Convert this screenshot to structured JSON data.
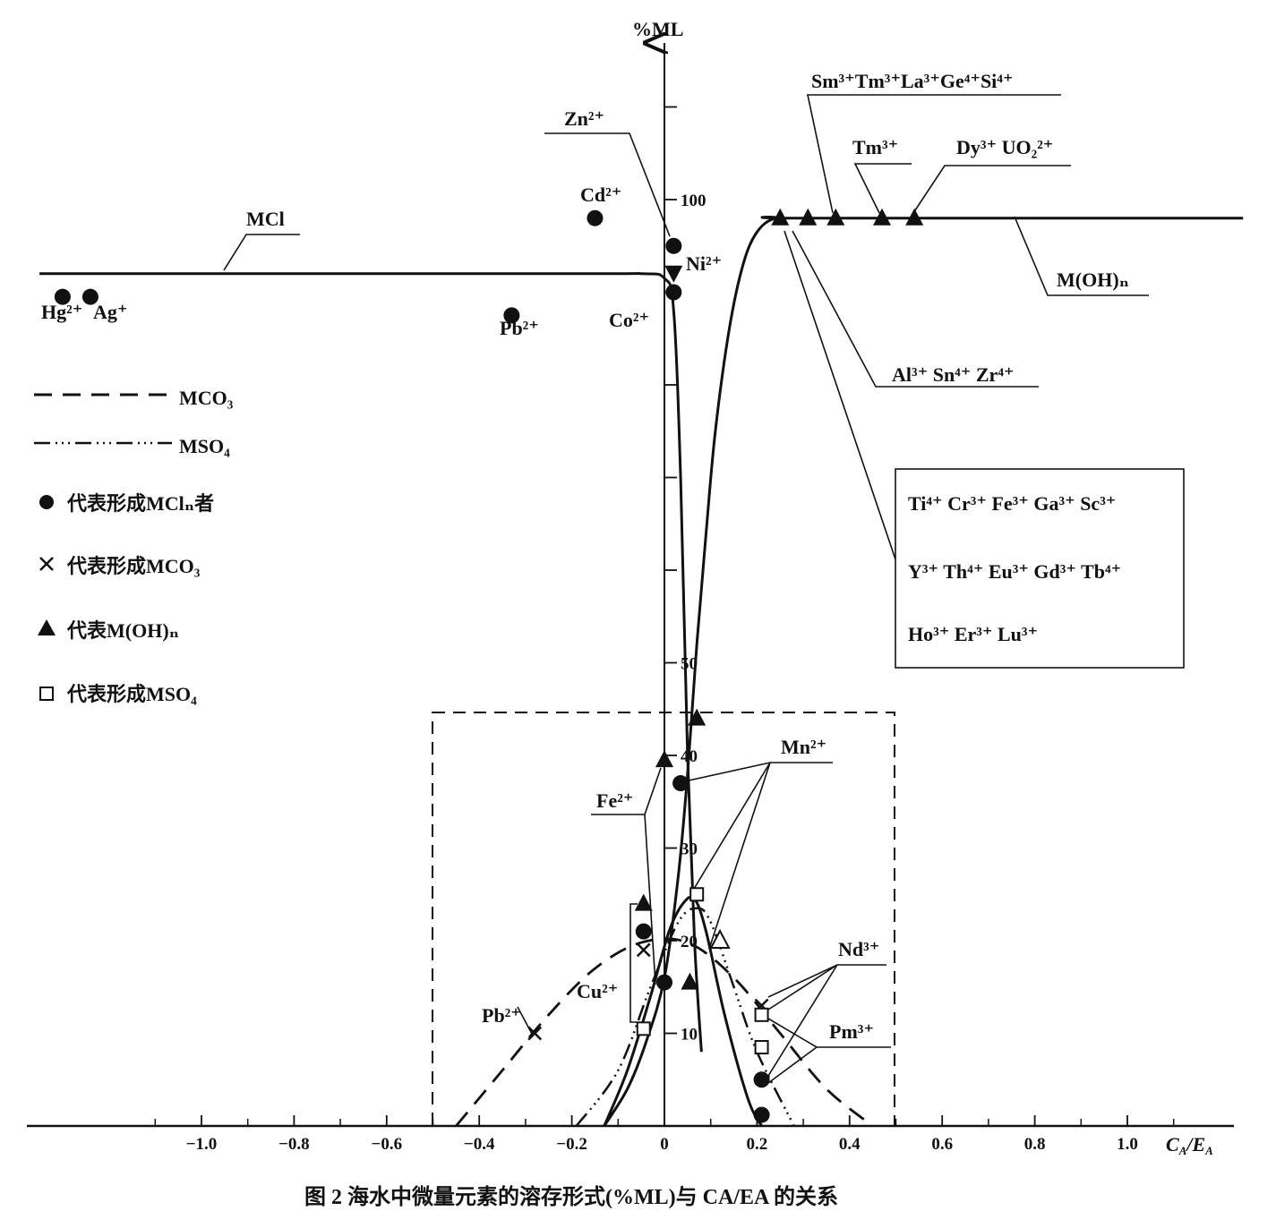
{
  "chart_data": {
    "type": "line",
    "caption": "图 2   海水中微量元素的溶存形式(%ML)与 CA/EA 的关系",
    "ylabel": "%ML",
    "xlabel": "CA/EA",
    "xlim": [
      -1.35,
      1.25
    ],
    "ylim": [
      0,
      115
    ],
    "x_ticks": [
      -1.0,
      -0.8,
      -0.6,
      -0.4,
      -0.2,
      0,
      0.2,
      0.4,
      0.6,
      0.8,
      1.0
    ],
    "x_tick_labels": [
      "−1.0",
      "−0.8",
      "−0.6",
      "−0.4",
      "−0.2",
      "0",
      "0.2",
      "0.4",
      "0.6",
      "0.8",
      "1.0"
    ],
    "y_ticks": [
      10,
      20,
      30,
      40,
      50,
      60,
      70,
      80,
      90,
      100,
      110
    ],
    "y_tick_labels": {
      "10": "10",
      "20": "20",
      "30": "30",
      "40": "40",
      "50": "50",
      "100": "100"
    },
    "series": [
      {
        "name": "MCl",
        "style": "solid",
        "x": [
          -1.35,
          -0.2,
          -0.05,
          0.0,
          0.02,
          0.035,
          0.05,
          0.065,
          0.08
        ],
        "y": [
          92,
          92,
          92,
          91.5,
          88,
          70,
          40,
          20,
          8
        ]
      },
      {
        "name": "M(OH)n",
        "style": "solid",
        "x": [
          -0.13,
          -0.08,
          -0.04,
          0.0,
          0.03,
          0.05,
          0.07,
          0.09,
          0.11,
          0.14,
          0.17,
          0.2,
          0.24,
          0.3,
          1.25
        ],
        "y": [
          0,
          4,
          9,
          16,
          27,
          38,
          52,
          64,
          75,
          86,
          93,
          96.5,
          98,
          98,
          98
        ]
      },
      {
        "name": "MCO3",
        "style": "dashed",
        "x": [
          -0.45,
          -0.35,
          -0.25,
          -0.15,
          -0.05,
          0.05,
          0.15,
          0.25,
          0.35,
          0.45
        ],
        "y": [
          0,
          6,
          12,
          17,
          19.8,
          19.8,
          16,
          10,
          4,
          0
        ]
      },
      {
        "name": "MSO4",
        "style": "dashdotdot",
        "x": [
          -0.19,
          -0.1,
          -0.03,
          0.03,
          0.07,
          0.1,
          0.15,
          0.2,
          0.28
        ],
        "y": [
          0,
          6,
          15,
          22,
          23.5,
          22,
          15,
          8,
          0
        ]
      },
      {
        "name": "",
        "style": "solid",
        "x": [
          -0.13,
          -0.08,
          -0.03,
          0.01,
          0.04,
          0.065,
          0.09,
          0.13,
          0.18,
          0.21
        ],
        "y": [
          0,
          6,
          14,
          21,
          24,
          24.5,
          21,
          12,
          3,
          0
        ]
      }
    ],
    "markers": [
      {
        "symbol": "circle",
        "label": "Hg2+",
        "x": -1.3,
        "y": 89.5
      },
      {
        "symbol": "circle",
        "label": "Ag+",
        "x": -1.24,
        "y": 89.5
      },
      {
        "symbol": "circle",
        "label": "Pb2+",
        "x": -0.33,
        "y": 87.5
      },
      {
        "symbol": "circle",
        "label": "Cd2+",
        "x": -0.15,
        "y": 98
      },
      {
        "symbol": "circle",
        "label": "Zn2+",
        "x": 0.02,
        "y": 95
      },
      {
        "symbol": "triangle-down",
        "label": "Ni2+",
        "x": 0.02,
        "y": 92
      },
      {
        "symbol": "circle",
        "label": "Co2+",
        "x": 0.02,
        "y": 90
      },
      {
        "symbol": "triangle",
        "label": "M(OH)n",
        "x": 0.25,
        "y": 98
      },
      {
        "symbol": "triangle",
        "label": "M(OH)n",
        "x": 0.31,
        "y": 98
      },
      {
        "symbol": "triangle",
        "label": "M(OH)n",
        "x": 0.37,
        "y": 98
      },
      {
        "symbol": "triangle",
        "label": "Tm3+",
        "x": 0.47,
        "y": 98
      },
      {
        "symbol": "triangle",
        "label": "Dy3+ UO2 2+",
        "x": 0.54,
        "y": 98
      },
      {
        "symbol": "triangle",
        "label": "Fe2+",
        "x": 0.0,
        "y": 39.5
      },
      {
        "symbol": "triangle",
        "label": "",
        "x": 0.07,
        "y": 44
      },
      {
        "symbol": "circle",
        "label": "Mn2+",
        "x": 0.035,
        "y": 37
      },
      {
        "symbol": "square",
        "label": "Mn2+",
        "x": 0.07,
        "y": 25
      },
      {
        "symbol": "triangle-open",
        "label": "Mn2+",
        "x": 0.12,
        "y": 20
      },
      {
        "symbol": "triangle",
        "label": "Cu2+",
        "x": -0.045,
        "y": 24
      },
      {
        "symbol": "circle",
        "label": "Cu2+",
        "x": -0.045,
        "y": 21
      },
      {
        "symbol": "cross",
        "label": "Cu2+",
        "x": -0.045,
        "y": 19
      },
      {
        "symbol": "square",
        "label": "Cu2+",
        "x": -0.045,
        "y": 10.5
      },
      {
        "symbol": "circle",
        "label": "",
        "x": 0.0,
        "y": 15.5
      },
      {
        "symbol": "triangle",
        "label": "",
        "x": 0.055,
        "y": 15.5
      },
      {
        "symbol": "cross",
        "label": "Pb2+",
        "x": -0.28,
        "y": 10
      },
      {
        "symbol": "cross",
        "label": "Nd3+",
        "x": 0.21,
        "y": 13
      },
      {
        "symbol": "square",
        "label": "Nd3+",
        "x": 0.21,
        "y": 12
      },
      {
        "symbol": "square",
        "label": "Pm3+",
        "x": 0.21,
        "y": 8.5
      },
      {
        "symbol": "circle",
        "label": "Pm3+",
        "x": 0.21,
        "y": 5
      },
      {
        "symbol": "circle",
        "label": "",
        "x": 0.21,
        "y": 1.2
      }
    ],
    "legend": [
      {
        "style": "dashed",
        "text": "MCO₃"
      },
      {
        "style": "dashdotdot",
        "text": "MSO₄"
      },
      {
        "symbol": "circle",
        "text": "代表形成MClₙ者"
      },
      {
        "symbol": "cross",
        "text": "代表形成MCO₃"
      },
      {
        "symbol": "triangle",
        "text": "代表M(OH)ₙ"
      },
      {
        "symbol": "square",
        "text": "代表形成MSO₄"
      }
    ],
    "curve_labels": {
      "mcl": "MCl",
      "moh": "M(OH)ₙ"
    },
    "annotations": {
      "top_ions": "Sm³⁺Tm³⁺La³⁺Ge⁴⁺Si⁴⁺",
      "tm": "Tm³⁺",
      "dy": "Dy³⁺  UO₂²⁺",
      "zn": "Zn²⁺",
      "cd": "Cd²⁺",
      "ni": "Ni²⁺",
      "co": "Co²⁺",
      "hg": "Hg²⁺",
      "ag": "Ag⁺",
      "pb_top": "Pb²⁺",
      "al": "Al³⁺  Sn⁴⁺  Zr⁴⁺",
      "box_line1": "Ti⁴⁺  Cr³⁺  Fe³⁺  Ga³⁺  Sc³⁺",
      "box_line2": "Y³⁺  Th⁴⁺ Eu³⁺  Gd³⁺  Tb⁴⁺",
      "box_line3": "Ho³⁺  Er³⁺  Lu³⁺",
      "mn": "Mn²⁺",
      "fe": "Fe²⁺",
      "cu": "Cu²⁺",
      "pb_bottom": "Pb²⁺",
      "nd": "Nd³⁺",
      "pm": "Pm³⁺"
    }
  }
}
